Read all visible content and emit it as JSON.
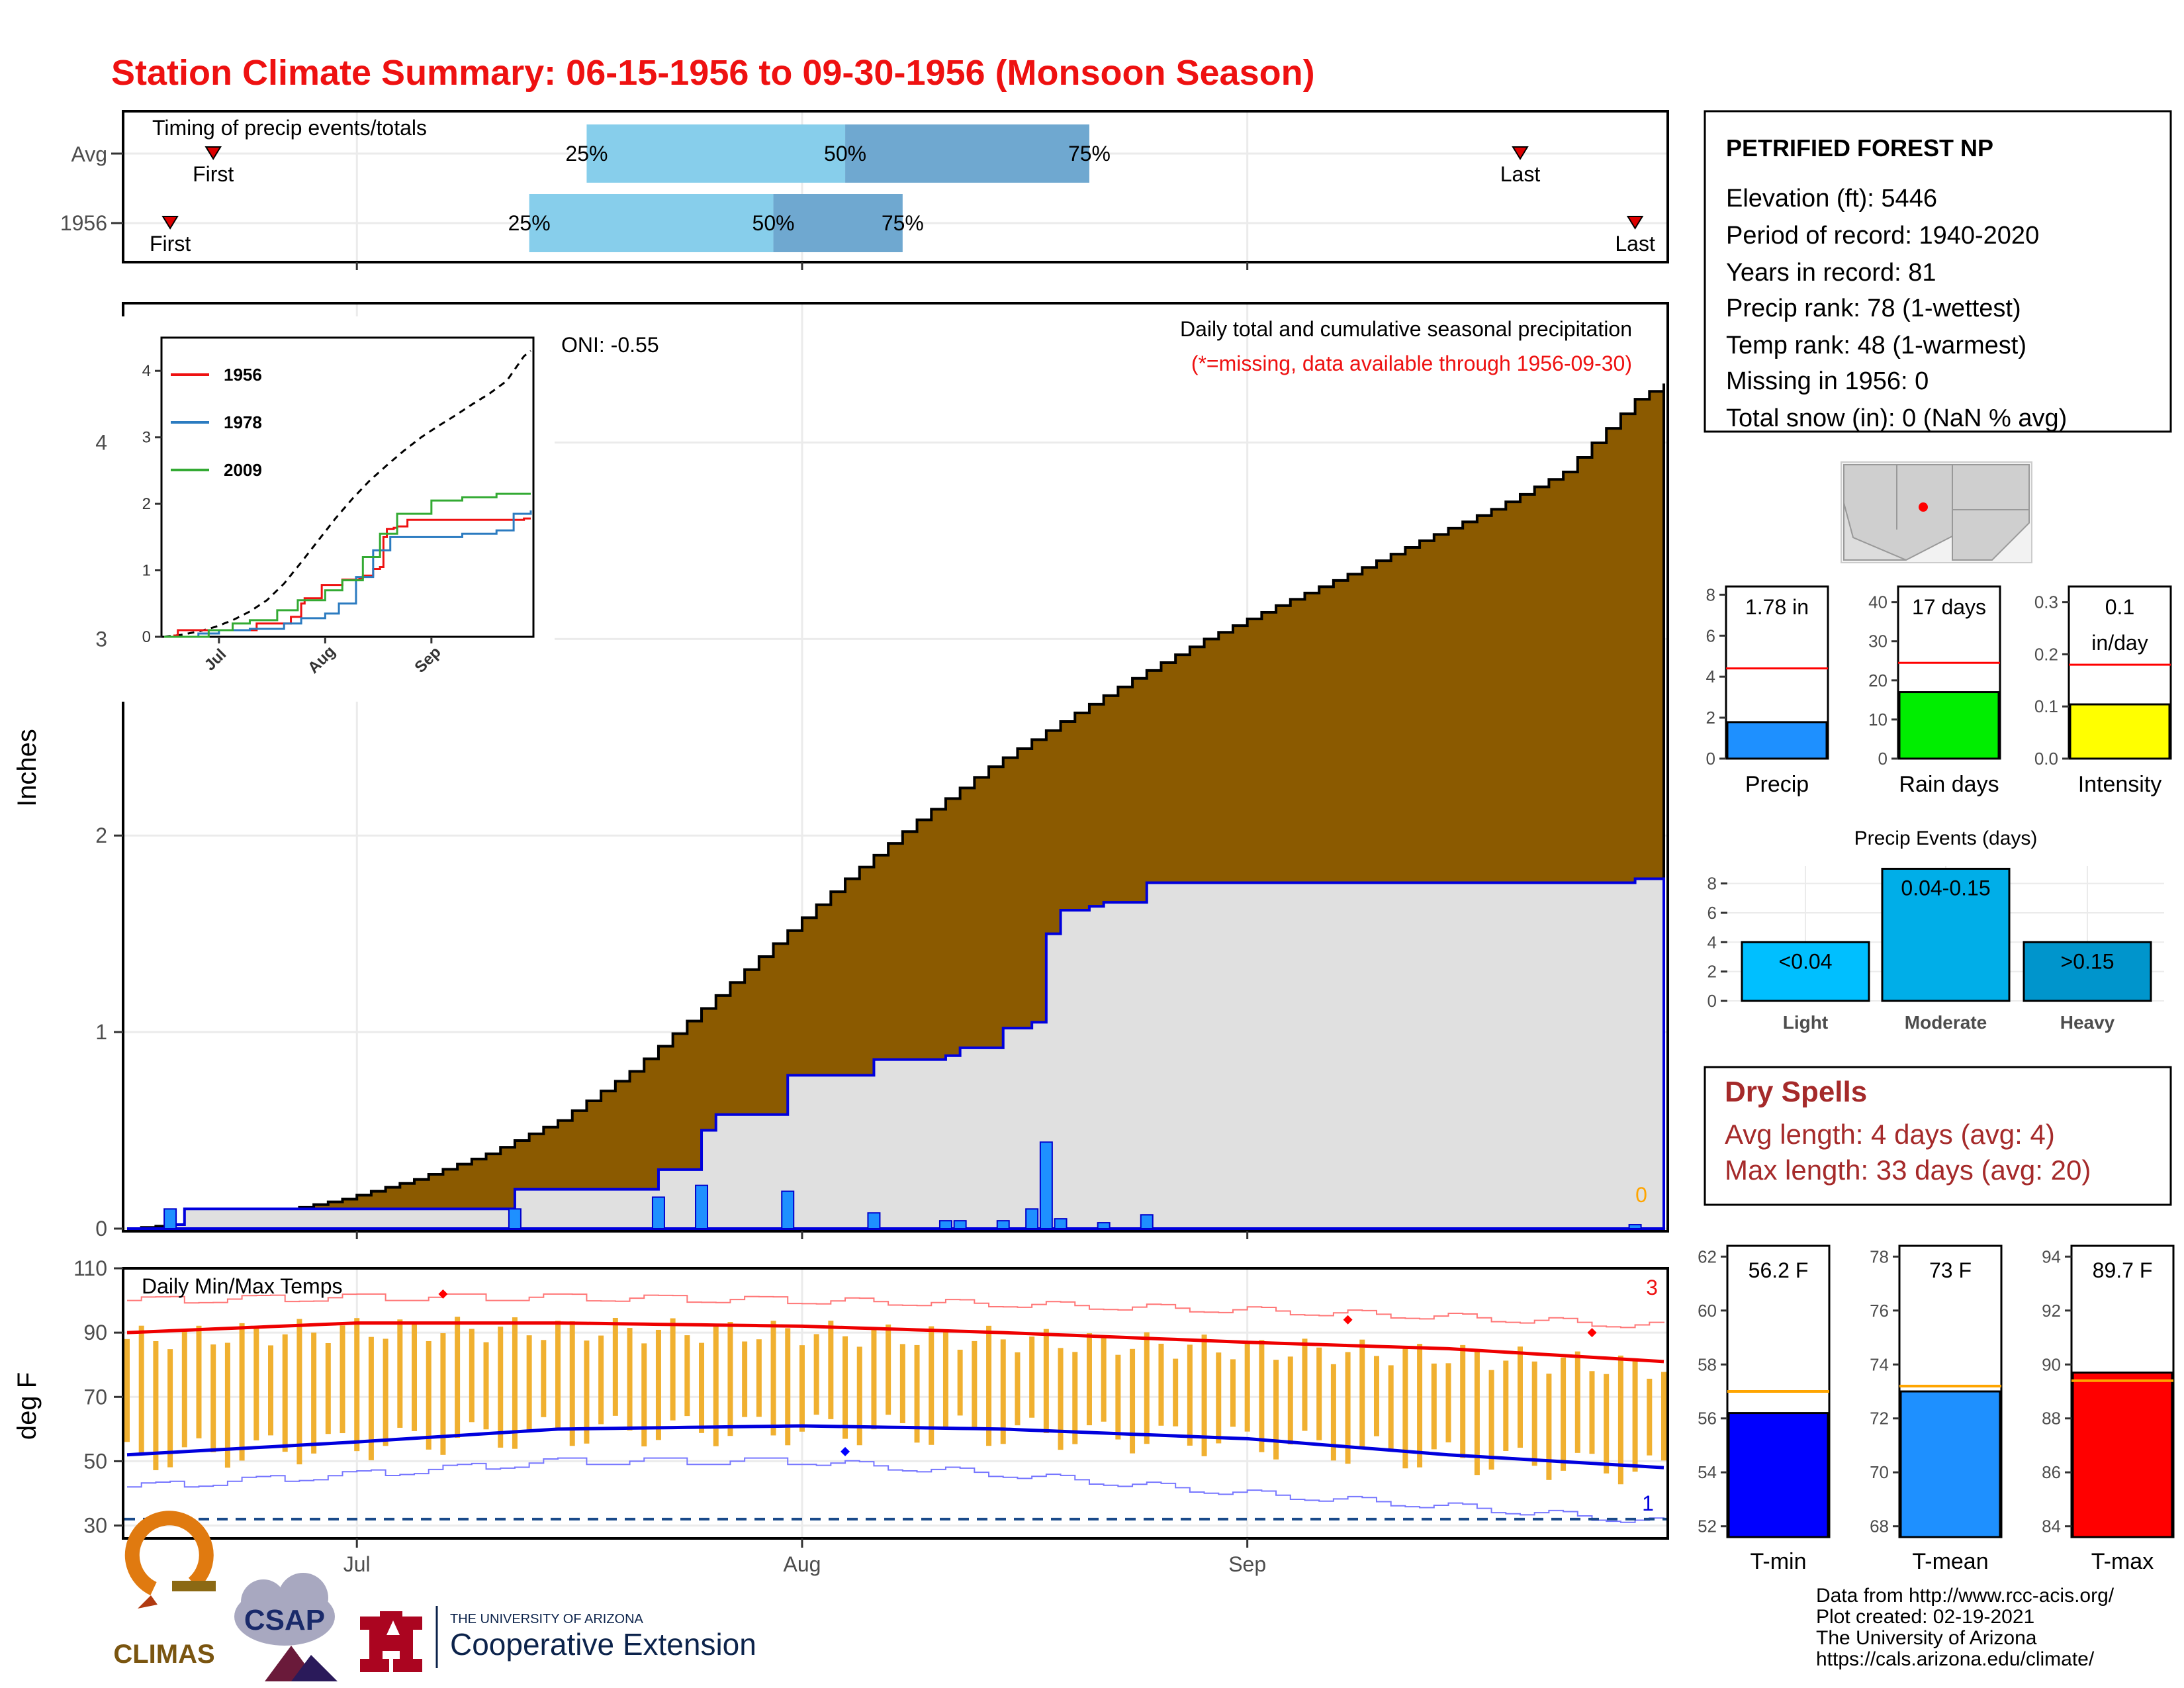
{
  "title": "Station Climate Summary: 06-15-1956 to 09-30-1956 (Monsoon Season)",
  "colors": {
    "title_red": "#ee1111",
    "cumulative_brown": "#8b5a00",
    "current_gray": "#e0e0e0",
    "daily_bar_blue": "#1e90ff",
    "current_line_blue": "#0000dd",
    "quartile_light": "#87ceeb",
    "quartile_dark": "#6fa8d0",
    "temp_bar_orange": "#f0b030",
    "dry_spell_red": "#a52a2a"
  },
  "timing": {
    "caption": "Timing of precip events/totals",
    "row_labels": [
      "Avg",
      "1956"
    ],
    "first_label": "First",
    "last_label": "Last",
    "q25_label": "25%",
    "q50_label": "50%",
    "q75_label": "75%",
    "avg": {
      "first": "2020-06-21",
      "q25": "2020-07-17",
      "q50": "2020-08-04",
      "q75": "2020-08-21",
      "last": "2020-09-20"
    },
    "year": {
      "first": "2020-06-18",
      "q25": "2020-07-13",
      "q50": "2020-07-30",
      "q75": "2020-08-08",
      "last": "2020-09-28"
    }
  },
  "precip_panel": {
    "ylabel": "Inches",
    "oni_label": "ONI: -0.55",
    "subtitle": "Daily total and cumulative seasonal precipitation",
    "missing_note": "(*=missing, data available through 1956-09-30)",
    "missing_count": "0",
    "y_ticks": [
      "0",
      "1",
      "2",
      "3",
      "4"
    ],
    "x_ticks": [
      "Jul",
      "Aug",
      "Sep"
    ]
  },
  "inset": {
    "y_ticks": [
      "0",
      "1",
      "2",
      "3",
      "4"
    ],
    "x_ticks": [
      "Jul",
      "Aug",
      "Sep"
    ],
    "legend": [
      "1956",
      "1978",
      "2009"
    ],
    "legend_colors": [
      "#ee1111",
      "#2b7bc0",
      "#33aa33"
    ]
  },
  "temp_panel": {
    "caption": "Daily Min/Max Temps",
    "ylabel": "deg F",
    "y_ticks": [
      "110",
      "90",
      "70",
      "50",
      "30"
    ],
    "x_ticks": [
      "Jul",
      "Aug",
      "Sep"
    ],
    "record_high_count": "3",
    "record_low_count": "1"
  },
  "station": {
    "name": "PETRIFIED FOREST NP",
    "lines": [
      "Elevation (ft): 5446",
      "Period of record: 1940-2020",
      "Years in record: 81",
      "Precip rank: 78 (1-wettest)",
      "Temp rank: 48 (1-warmest)",
      "Missing in 1956: 0",
      "Total snow (in): 0 (NaN % avg)"
    ]
  },
  "summary_bars": [
    {
      "label": "Precip",
      "value_label": "1.78 in",
      "value": 1.78,
      "avg": 4.4,
      "ticks": [
        "0",
        "2",
        "4",
        "6",
        "8"
      ],
      "max": 8.4,
      "color": "#1e90ff"
    },
    {
      "label": "Rain days",
      "value_label": "17 days",
      "value": 17,
      "avg": 24.5,
      "ticks": [
        "0",
        "10",
        "20",
        "30",
        "40"
      ],
      "max": 44,
      "color": "#00ee00"
    },
    {
      "label": "Intensity",
      "value_label": "0.1\nin/day",
      "value": 0.104,
      "avg": 0.18,
      "ticks": [
        "0.0",
        "0.1",
        "0.2",
        "0.3"
      ],
      "max": 0.33,
      "color": "#ffff00"
    }
  ],
  "events": {
    "title": "Precip Events (days)",
    "y_ticks": [
      "0",
      "2",
      "4",
      "6",
      "8"
    ],
    "bars": [
      {
        "label": "Light",
        "inner": "<0.04",
        "value": 4,
        "color": "#00bfff"
      },
      {
        "label": "Moderate",
        "inner": "0.04-0.15",
        "value": 9,
        "color": "#00aee8"
      },
      {
        "label": "Heavy",
        "inner": ">0.15",
        "value": 4,
        "color": "#0095cc"
      }
    ]
  },
  "dry_spells": {
    "title": "Dry Spells",
    "avg_line": "Avg length: 4 days (avg: 4)",
    "max_line": "Max length: 33 days (avg: 20)"
  },
  "temp_bars": [
    {
      "label": "T-min",
      "value_label": "56.2 F",
      "value": 56.2,
      "avg": 57.0,
      "ticks": [
        "52",
        "54",
        "56",
        "58",
        "60",
        "62"
      ],
      "min": 51.6,
      "max": 62.4,
      "color": "#0000ff"
    },
    {
      "label": "T-mean",
      "value_label": "73 F",
      "value": 73.0,
      "avg": 73.2,
      "ticks": [
        "68",
        "70",
        "72",
        "74",
        "76",
        "78"
      ],
      "min": 67.6,
      "max": 78.4,
      "color": "#1e90ff"
    },
    {
      "label": "T-max",
      "value_label": "89.7 F",
      "value": 89.7,
      "avg": 89.4,
      "ticks": [
        "84",
        "86",
        "88",
        "90",
        "92",
        "94"
      ],
      "min": 83.6,
      "max": 94.4,
      "color": "#ff0000"
    }
  ],
  "footer": {
    "credits": [
      "Data from http://www.rcc-acis.org/",
      "Plot created: 02-19-2021",
      "The University of Arizona",
      "https://cals.arizona.edu/climate/"
    ],
    "climas": "CLIMAS",
    "csap": "CSAP",
    "ua_line1": "THE UNIVERSITY OF ARIZONA",
    "ua_line2": "Cooperative Extension"
  },
  "chart_data": {
    "type": "area",
    "title": "Station Climate Summary: 06-15-1956 to 09-30-1956 (Monsoon Season)",
    "ylabel": "Inches",
    "ylim": [
      0,
      4.5
    ],
    "x_range": [
      "1956-06-15",
      "1956-09-30"
    ],
    "avg_cumulative": {
      "name": "average",
      "x": [
        "06-15",
        "06-20",
        "06-25",
        "06-30",
        "07-05",
        "07-10",
        "07-15",
        "07-20",
        "07-25",
        "07-30",
        "08-04",
        "08-09",
        "08-14",
        "08-19",
        "08-24",
        "08-29",
        "09-03",
        "09-08",
        "09-13",
        "09-18",
        "09-23",
        "09-28",
        "09-30"
      ],
      "y": [
        0.0,
        0.03,
        0.08,
        0.15,
        0.25,
        0.38,
        0.55,
        0.8,
        1.12,
        1.45,
        1.78,
        2.08,
        2.35,
        2.58,
        2.8,
        3.0,
        3.17,
        3.33,
        3.5,
        3.66,
        3.85,
        4.22,
        4.3
      ]
    },
    "cumulative_1956": {
      "name": "1956",
      "x": [
        "06-15",
        "06-18",
        "06-19",
        "07-11",
        "07-12",
        "07-22",
        "07-25",
        "07-26",
        "07-30",
        "07-31",
        "08-05",
        "08-06",
        "08-11",
        "08-12",
        "08-15",
        "08-17",
        "08-18",
        "08-19",
        "08-21",
        "08-22",
        "08-25",
        "09-28",
        "09-30"
      ],
      "y": [
        0.0,
        0.02,
        0.1,
        0.1,
        0.2,
        0.3,
        0.5,
        0.58,
        0.58,
        0.78,
        0.78,
        0.86,
        0.88,
        0.92,
        1.02,
        1.05,
        1.5,
        1.62,
        1.64,
        1.66,
        1.76,
        1.78,
        1.78
      ]
    },
    "daily_1956": {
      "name": "1956 daily",
      "x": [
        "06-18",
        "07-12",
        "07-22",
        "07-25",
        "07-31",
        "08-06",
        "08-11",
        "08-12",
        "08-15",
        "08-17",
        "08-18",
        "08-19",
        "08-22",
        "08-25",
        "09-28"
      ],
      "y": [
        0.1,
        0.1,
        0.16,
        0.22,
        0.19,
        0.08,
        0.04,
        0.04,
        0.04,
        0.1,
        0.44,
        0.05,
        0.03,
        0.07,
        0.02
      ]
    },
    "temperature": {
      "ylabel": "deg F",
      "ylim": [
        26,
        110
      ],
      "avg_max_x": [
        "06-15",
        "07-01",
        "07-15",
        "08-01",
        "08-15",
        "09-01",
        "09-15",
        "09-30"
      ],
      "avg_max_y": [
        90,
        93,
        93,
        92,
        90,
        87,
        85,
        81
      ],
      "avg_min_x": [
        "06-15",
        "07-01",
        "07-15",
        "08-01",
        "08-15",
        "09-01",
        "09-15",
        "09-30"
      ],
      "avg_min_y": [
        52,
        56,
        60,
        61,
        60,
        57,
        52,
        48
      ],
      "record_high_x": [
        "06-15",
        "07-01",
        "07-15",
        "08-01",
        "08-15",
        "09-01",
        "09-15",
        "09-30"
      ],
      "record_high_y": [
        100,
        101,
        101,
        100,
        99,
        97,
        95,
        92
      ],
      "record_low_x": [
        "06-15",
        "07-01",
        "07-15",
        "08-01",
        "08-15",
        "09-01",
        "09-15",
        "09-30"
      ],
      "record_low_y": [
        42,
        46,
        50,
        50,
        46,
        40,
        36,
        31
      ]
    }
  }
}
